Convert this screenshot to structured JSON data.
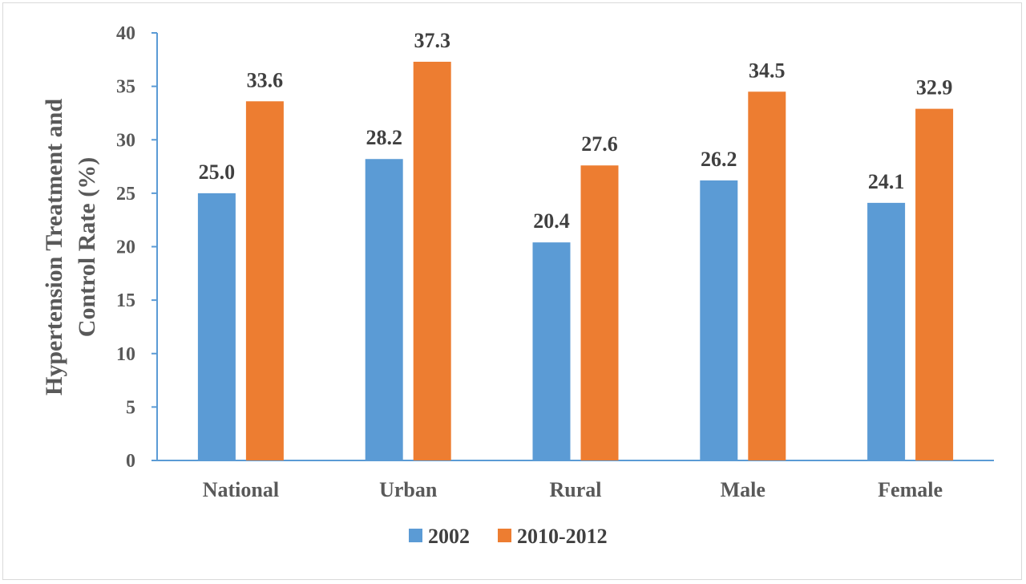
{
  "chart_data": {
    "type": "bar",
    "title": "",
    "xlabel": "",
    "ylabel_lines": [
      "Hypertension Treatment and",
      "Control Rate (%)"
    ],
    "ylim": [
      0,
      40
    ],
    "yticks": [
      0,
      5,
      10,
      15,
      20,
      25,
      30,
      35,
      40
    ],
    "categories": [
      "National",
      "Urban",
      "Rural",
      "Male",
      "Female"
    ],
    "series": [
      {
        "name": "2002",
        "values": [
          25.0,
          28.2,
          20.4,
          26.2,
          24.1
        ],
        "color": "#5b9bd5"
      },
      {
        "name": "2010-2012",
        "values": [
          33.6,
          37.3,
          27.6,
          34.5,
          32.9
        ],
        "color": "#ed7d31"
      }
    ],
    "data_labels": {
      "2002": [
        "25.0",
        "28.2",
        "20.4",
        "26.2",
        "24.1"
      ],
      "2010-2012": [
        "33.6",
        "37.3",
        "27.6",
        "34.5",
        "32.9"
      ]
    },
    "legend": "bottom",
    "grid": false,
    "axis_color": "#5b9bd5"
  }
}
